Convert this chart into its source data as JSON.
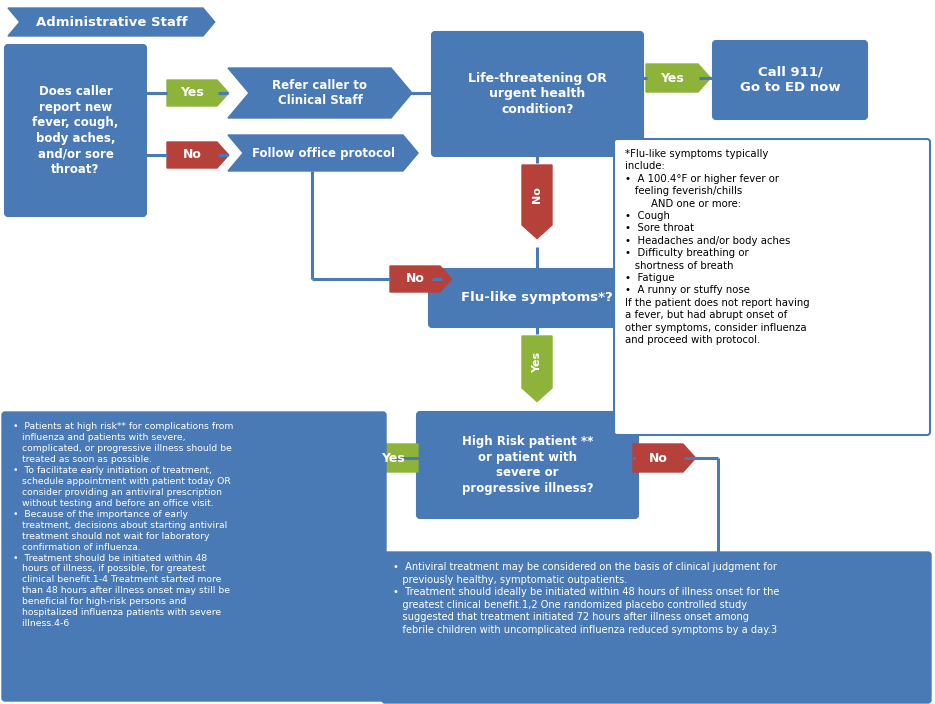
{
  "blue": "#4a7ab5",
  "green": "#8db33a",
  "red": "#b5413a",
  "white": "#ffffff",
  "black": "#000000",
  "admin_text": "Administrative Staff",
  "box1_text": "Does caller\nreport new\nfever, cough,\nbody aches,\nand/or sore\nthroat?",
  "box2_text": "Refer caller to\nClinical Staff",
  "box3_text": "Follow office protocol",
  "box4_text": "Life-threatening OR\nurgent health\ncondition?",
  "box5_text": "Call 911/\nGo to ED now",
  "box6_text": "Flu-like symptoms*?",
  "box7_text": "High Risk patient **\nor patient with\nsevere or\nprogressive illness?",
  "flu_text": "*Flu-like symptoms typically\ninclude:\n•  A 100.4°F or higher fever or\n   feeling feverish/chills\n        AND one or more:\n•  Cough\n•  Sore throat\n•  Headaches and/or body aches\n•  Difficulty breathing or\n   shortness of breath\n•  Fatigue\n•  A runny or stuffy nose\nIf the patient does not report having\na fever, but had abrupt onset of\nother symptoms, consider influenza\nand proceed with protocol.",
  "bottom_left_text": "•  Patients at high risk** for complications from\n   influenza and patients with severe,\n   complicated, or progressive illness should be\n   treated as soon as possible.\n•  To facilitate early initiation of treatment,\n   schedule appointment with patient today OR\n   consider providing an antiviral prescription\n   without testing and before an office visit.\n•  Because of the importance of early\n   treatment, decisions about starting antiviral\n   treatment should not wait for laboratory\n   confirmation of influenza.\n•  Treatment should be initiated within 48\n   hours of illness, if possible, for greatest\n   clinical benefit.1-4 Treatment started more\n   than 48 hours after illness onset may still be\n   beneficial for high-risk persons and\n   hospitalized influenza patients with severe\n   illness.4-6",
  "bottom_right_text": "•  Antiviral treatment may be considered on the basis of clinical judgment for\n   previously healthy, symptomatic outpatients.\n•  Treatment should ideally be initiated within 48 hours of illness onset for the\n   greatest clinical benefit.1,2 One randomized placebo controlled study\n   suggested that treatment initiated 72 hours after illness onset among\n   febrile children with uncomplicated influenza reduced symptoms by a day.3"
}
